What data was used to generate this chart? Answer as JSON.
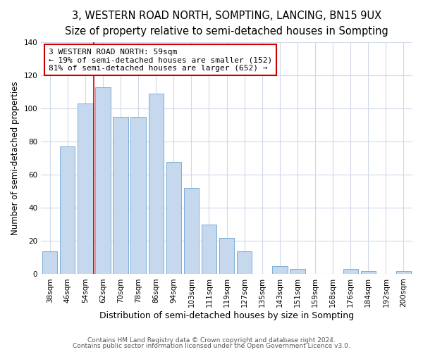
{
  "title": "3, WESTERN ROAD NORTH, SOMPTING, LANCING, BN15 9UX",
  "subtitle": "Size of property relative to semi-detached houses in Sompting",
  "xlabel": "Distribution of semi-detached houses by size in Sompting",
  "ylabel": "Number of semi-detached properties",
  "categories": [
    "38sqm",
    "46sqm",
    "54sqm",
    "62sqm",
    "70sqm",
    "78sqm",
    "86sqm",
    "94sqm",
    "103sqm",
    "111sqm",
    "119sqm",
    "127sqm",
    "135sqm",
    "143sqm",
    "151sqm",
    "159sqm",
    "168sqm",
    "176sqm",
    "184sqm",
    "192sqm",
    "200sqm"
  ],
  "values": [
    14,
    77,
    103,
    113,
    95,
    95,
    109,
    68,
    52,
    30,
    22,
    14,
    0,
    5,
    3,
    0,
    0,
    3,
    2,
    0,
    2
  ],
  "bar_color": "#c5d8ee",
  "bar_edge_color": "#7aaed4",
  "bar_edge_width": 0.7,
  "annotation_text": "3 WESTERN ROAD NORTH: 59sqm\n← 19% of semi-detached houses are smaller (152)\n81% of semi-detached houses are larger (652) →",
  "annotation_box_color": "white",
  "annotation_box_edge_color": "#cc0000",
  "red_line_color": "#cc0000",
  "ylim": [
    0,
    140
  ],
  "yticks": [
    0,
    20,
    40,
    60,
    80,
    100,
    120,
    140
  ],
  "title_fontsize": 10.5,
  "subtitle_fontsize": 9,
  "xlabel_fontsize": 9,
  "ylabel_fontsize": 8.5,
  "tick_fontsize": 7.5,
  "annotation_fontsize": 8,
  "footer_line1": "Contains HM Land Registry data © Crown copyright and database right 2024.",
  "footer_line2": "Contains public sector information licensed under the Open Government Licence v3.0.",
  "bg_color": "#ffffff",
  "plot_bg_color": "#ffffff",
  "red_line_index": 2.5
}
